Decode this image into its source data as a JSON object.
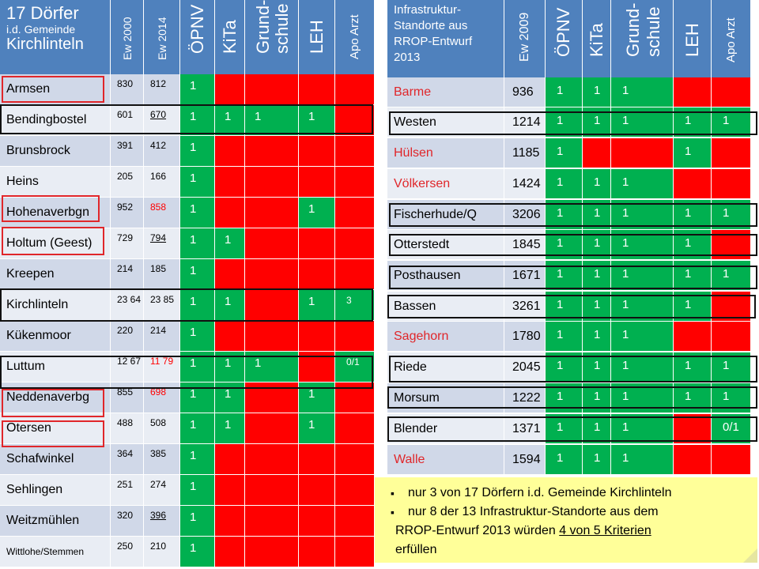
{
  "left_table": {
    "header": {
      "title_line1": "17 Dörfer",
      "title_line2": "i.d. Gemeinde",
      "title_line3": "Kirchlinteln",
      "col_ew2000": "Ew 2000",
      "col_ew2014": "Ew 2014",
      "col_oepnv": "ÖPNV",
      "col_kita": "KiTa",
      "col_grund1": "Grund-",
      "col_grund2": "schule",
      "col_leh": "LEH",
      "col_apo": "Apo Arzt"
    },
    "rows": [
      {
        "name": "Armsen",
        "ew2000": "830",
        "ew2014": "812",
        "oepnv": "1",
        "kita": "",
        "grund": "",
        "leh": "",
        "apo": "",
        "status": [
          "g",
          "r",
          "r",
          "r",
          "r"
        ]
      },
      {
        "name": "Bendingbostel",
        "ew2000": "601",
        "ew2014": "670",
        "oepnv": "1",
        "kita": "1",
        "grund": "1",
        "leh": "1",
        "apo": "",
        "status": [
          "g",
          "g",
          "g",
          "g",
          "r"
        ]
      },
      {
        "name": "Brunsbrock",
        "ew2000": "391",
        "ew2014": "412",
        "oepnv": "1",
        "kita": "",
        "grund": "",
        "leh": "",
        "apo": "",
        "status": [
          "g",
          "r",
          "r",
          "r",
          "r"
        ]
      },
      {
        "name": "Heins",
        "ew2000": "205",
        "ew2014": "166",
        "oepnv": "1",
        "kita": "",
        "grund": "",
        "leh": "",
        "apo": "",
        "status": [
          "g",
          "r",
          "r",
          "r",
          "r"
        ]
      },
      {
        "name": "Hohenaverbgn",
        "ew2000": "952",
        "ew2014": "858",
        "oepnv": "1",
        "kita": "",
        "grund": "",
        "leh": "1",
        "apo": "",
        "status": [
          "g",
          "r",
          "r",
          "g",
          "r"
        ]
      },
      {
        "name": "Holtum (Geest)",
        "ew2000": "729",
        "ew2014": "794",
        "oepnv": "1",
        "kita": "1",
        "grund": "",
        "leh": "",
        "apo": "",
        "status": [
          "g",
          "g",
          "r",
          "r",
          "r"
        ]
      },
      {
        "name": "Kreepen",
        "ew2000": "214",
        "ew2014": "185",
        "oepnv": "1",
        "kita": "",
        "grund": "",
        "leh": "",
        "apo": "",
        "status": [
          "g",
          "r",
          "r",
          "r",
          "r"
        ]
      },
      {
        "name": "Kirchlinteln",
        "ew2000": "23 64",
        "ew2014": "23 85",
        "oepnv": "1",
        "kita": "1",
        "grund": "",
        "leh": "1",
        "apo": "3",
        "status": [
          "g",
          "g",
          "r",
          "g",
          "g"
        ]
      },
      {
        "name": "Kükenmoor",
        "ew2000": "220",
        "ew2014": "214",
        "oepnv": "1",
        "kita": "",
        "grund": "",
        "leh": "",
        "apo": "",
        "status": [
          "g",
          "r",
          "r",
          "r",
          "r"
        ]
      },
      {
        "name": "Luttum",
        "ew2000": "12 67",
        "ew2014": "11 79",
        "oepnv": "1",
        "kita": "1",
        "grund": "1",
        "leh": "",
        "apo": "0/1",
        "status": [
          "g",
          "g",
          "g",
          "r",
          "g"
        ]
      },
      {
        "name": "Neddenaverbg",
        "ew2000": "855",
        "ew2014": "698",
        "oepnv": "1",
        "kita": "1",
        "grund": "",
        "leh": "1",
        "apo": "",
        "status": [
          "g",
          "g",
          "r",
          "g",
          "r"
        ]
      },
      {
        "name": "Otersen",
        "ew2000": "488",
        "ew2014": "508",
        "oepnv": "1",
        "kita": "1",
        "grund": "",
        "leh": "1",
        "apo": "",
        "status": [
          "g",
          "g",
          "r",
          "g",
          "r"
        ]
      },
      {
        "name": "Schafwinkel",
        "ew2000": "364",
        "ew2014": "385",
        "oepnv": "1",
        "kita": "",
        "grund": "",
        "leh": "",
        "apo": "",
        "status": [
          "g",
          "r",
          "r",
          "r",
          "r"
        ]
      },
      {
        "name": "Sehlingen",
        "ew2000": "251",
        "ew2014": "274",
        "oepnv": "1",
        "kita": "",
        "grund": "",
        "leh": "",
        "apo": "",
        "status": [
          "g",
          "r",
          "r",
          "r",
          "r"
        ]
      },
      {
        "name": "Weitzmühlen",
        "ew2000": "320",
        "ew2014": "396",
        "oepnv": "1",
        "kita": "",
        "grund": "",
        "leh": "",
        "apo": "",
        "status": [
          "g",
          "r",
          "r",
          "r",
          "r"
        ]
      },
      {
        "name": "Wittlohe/Stemmen",
        "ew2000": "250",
        "ew2014": "210",
        "oepnv": "1",
        "kita": "",
        "grund": "",
        "leh": "",
        "apo": "",
        "status": [
          "g",
          "r",
          "r",
          "r",
          "r"
        ]
      }
    ]
  },
  "right_table": {
    "header": {
      "title_line1": "Infrastruktur-",
      "title_line2": "Standorte aus",
      "title_line3": "RROP-Entwurf",
      "title_line4": "2013",
      "col_ew2009": "Ew 2009",
      "col_oepnv": "ÖPNV",
      "col_kita": "KiTa",
      "col_grund1": "Grund-",
      "col_grund2": "schule",
      "col_leh": "LEH",
      "col_apo": "Apo Arzt"
    },
    "rows": [
      {
        "name": "Barme",
        "ew2009": "936",
        "oepnv": "1",
        "kita": "1",
        "grund": "1",
        "leh": "",
        "apo": "",
        "status": [
          "g",
          "g",
          "g",
          "r",
          "r"
        ]
      },
      {
        "name": "Westen",
        "ew2009": "1214",
        "oepnv": "1",
        "kita": "1",
        "grund": "1",
        "leh": "1",
        "apo": "1",
        "status": [
          "g",
          "g",
          "g",
          "g",
          "g"
        ]
      },
      {
        "name": "Hülsen",
        "ew2009": "1185",
        "oepnv": "1",
        "kita": "",
        "grund": "",
        "leh": "1",
        "apo": "",
        "status": [
          "g",
          "r",
          "r",
          "g",
          "r"
        ]
      },
      {
        "name": "Völkersen",
        "ew2009": "1424",
        "oepnv": "1",
        "kita": "1",
        "grund": "1",
        "leh": "",
        "apo": "",
        "status": [
          "g",
          "g",
          "g",
          "r",
          "r"
        ]
      },
      {
        "name": "Fischerhude/Q",
        "ew2009": "3206",
        "oepnv": "1",
        "kita": "1",
        "grund": "1",
        "leh": "1",
        "apo": "1",
        "status": [
          "g",
          "g",
          "g",
          "g",
          "g"
        ]
      },
      {
        "name": "Otterstedt",
        "ew2009": "1845",
        "oepnv": "1",
        "kita": "1",
        "grund": "1",
        "leh": "1",
        "apo": "",
        "status": [
          "g",
          "g",
          "g",
          "g",
          "r"
        ]
      },
      {
        "name": "Posthausen",
        "ew2009": "1671",
        "oepnv": "1",
        "kita": "1",
        "grund": "1",
        "leh": "1",
        "apo": "1",
        "status": [
          "g",
          "g",
          "g",
          "g",
          "g"
        ]
      },
      {
        "name": "Bassen",
        "ew2009": "3261",
        "oepnv": "1",
        "kita": "1",
        "grund": "1",
        "leh": "1",
        "apo": "",
        "status": [
          "g",
          "g",
          "g",
          "g",
          "r"
        ]
      },
      {
        "name": "Sagehorn",
        "ew2009": "1780",
        "oepnv": "1",
        "kita": "1",
        "grund": "1",
        "leh": "",
        "apo": "",
        "status": [
          "g",
          "g",
          "g",
          "r",
          "r"
        ]
      },
      {
        "name": "Riede",
        "ew2009": "2045",
        "oepnv": "1",
        "kita": "1",
        "grund": "1",
        "leh": "1",
        "apo": "1",
        "status": [
          "g",
          "g",
          "g",
          "g",
          "g"
        ]
      },
      {
        "name": "Morsum",
        "ew2009": "1222",
        "oepnv": "1",
        "kita": "1",
        "grund": "1",
        "leh": "1",
        "apo": "1",
        "status": [
          "g",
          "g",
          "g",
          "g",
          "g"
        ]
      },
      {
        "name": "Blender",
        "ew2009": "1371",
        "oepnv": "1",
        "kita": "1",
        "grund": "1",
        "leh": "",
        "apo": "0/1",
        "status": [
          "g",
          "g",
          "g",
          "r",
          "g"
        ]
      },
      {
        "name": "Walle",
        "ew2009": "1594",
        "oepnv": "1",
        "kita": "1",
        "grund": "1",
        "leh": "",
        "apo": "",
        "status": [
          "g",
          "g",
          "g",
          "r",
          "r"
        ]
      }
    ]
  },
  "note": {
    "bullet1": "nur 3 von 17 Dörfern i.d. Gemeinde Kirchlinteln",
    "bullet2a": "nur 8 der 13 Infrastruktur-Standorte aus dem",
    "bullet2b": "RROP-Entwurf 2013 würden ",
    "bullet2c": "4 von 5 Kriterien ",
    "bullet2d": "erfüllen"
  },
  "colors": {
    "header_blue": "#4f81bd",
    "criteria_met": "#00b050",
    "criteria_missing": "#ff0000",
    "name_cell": "#d0d8e8",
    "note_bg": "#ffff99"
  }
}
